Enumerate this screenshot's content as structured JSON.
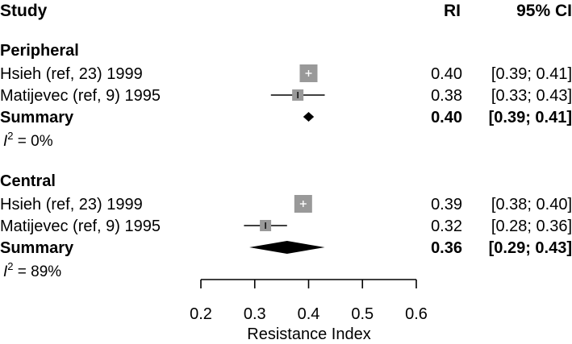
{
  "chart_data": {
    "type": "forest",
    "headers": {
      "study": "Study",
      "estimate": "RI",
      "ci": "95% CI"
    },
    "xlabel": "Resistance Index",
    "xlim": [
      0.2,
      0.6
    ],
    "ticks": [
      "0.2",
      "0.3",
      "0.4",
      "0.5",
      "0.6"
    ],
    "groups": [
      {
        "name": "Peripheral",
        "studies": [
          {
            "label": "Hsieh (ref, 23) 1999",
            "est": 0.4,
            "lo": 0.39,
            "hi": 0.41,
            "est_text": "0.40",
            "ci_text": "[0.39; 0.41]"
          },
          {
            "label": "Matijevec (ref, 9) 1995",
            "est": 0.38,
            "lo": 0.33,
            "hi": 0.43,
            "est_text": "0.38",
            "ci_text": "[0.33; 0.43]"
          }
        ],
        "summary": {
          "label": "Summary",
          "est": 0.4,
          "lo": 0.39,
          "hi": 0.41,
          "est_text": "0.40",
          "ci_text": "[0.39; 0.41]"
        },
        "i2_value": " = 0%"
      },
      {
        "name": "Central",
        "studies": [
          {
            "label": "Hsieh (ref, 23) 1999",
            "est": 0.39,
            "lo": 0.38,
            "hi": 0.4,
            "est_text": "0.39",
            "ci_text": "[0.38; 0.40]"
          },
          {
            "label": "Matijevec (ref, 9) 1995",
            "est": 0.32,
            "lo": 0.28,
            "hi": 0.36,
            "est_text": "0.32",
            "ci_text": "[0.28; 0.36]"
          }
        ],
        "summary": {
          "label": "Summary",
          "est": 0.36,
          "lo": 0.29,
          "hi": 0.43,
          "est_text": "0.36",
          "ci_text": "[0.29; 0.43]"
        },
        "i2_value": " = 89%"
      }
    ],
    "i2_symbol": "I",
    "i2_superscript": "2",
    "colors": {
      "study_box": "#999999",
      "summary": "#000000",
      "ci_line": "#000000",
      "box_tick": "#ffffff"
    }
  }
}
